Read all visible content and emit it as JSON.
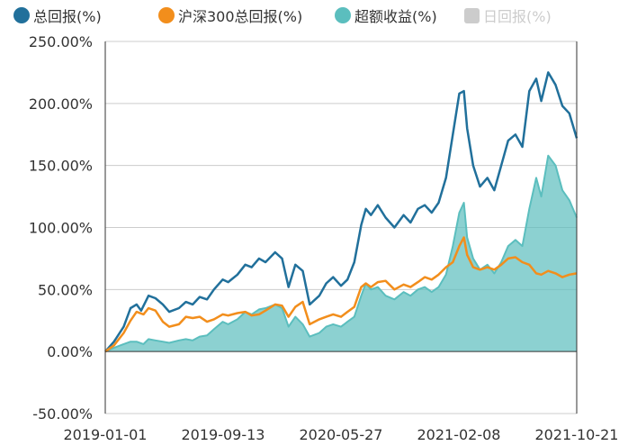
{
  "chart_data": {
    "type": "line",
    "legend": {
      "position": "top",
      "items": [
        {
          "label": "总回报(%)",
          "color": "#21709b",
          "active": true
        },
        {
          "label": "沪深300总回报(%)",
          "color": "#f28e1c",
          "active": true
        },
        {
          "label": "超额收益(%)",
          "color": "#5bbebe",
          "active": true
        },
        {
          "label": "日回报(%)",
          "color": "#cccccc",
          "active": false
        }
      ]
    },
    "y_axis": {
      "min": -50,
      "max": 250,
      "ticks": [
        {
          "value": 250,
          "label": "250.00%"
        },
        {
          "value": 200,
          "label": "200.00%"
        },
        {
          "value": 150,
          "label": "150.00%"
        },
        {
          "value": 100,
          "label": "100.00%"
        },
        {
          "value": 50,
          "label": "50.00%"
        },
        {
          "value": 0,
          "label": "0.00%"
        },
        {
          "value": -50,
          "label": "-50.00%"
        }
      ]
    },
    "x_axis": {
      "start": "2019-01-01",
      "end": "2021-10-21",
      "tick_labels": [
        "2019-01-01",
        "2019-09-13",
        "2020-05-27",
        "2021-02-08",
        "2021-10-21"
      ]
    },
    "grid": true,
    "series": [
      {
        "name": "总回报(%)",
        "color": "#21709b",
        "style": "line",
        "points": [
          [
            "2019-01-01",
            0
          ],
          [
            "2019-01-20",
            8
          ],
          [
            "2019-02-10",
            20
          ],
          [
            "2019-02-25",
            35
          ],
          [
            "2019-03-10",
            38
          ],
          [
            "2019-03-20",
            33
          ],
          [
            "2019-04-05",
            45
          ],
          [
            "2019-04-20",
            43
          ],
          [
            "2019-05-06",
            38
          ],
          [
            "2019-05-20",
            32
          ],
          [
            "2019-06-10",
            35
          ],
          [
            "2019-06-25",
            40
          ],
          [
            "2019-07-10",
            38
          ],
          [
            "2019-07-25",
            44
          ],
          [
            "2019-08-10",
            42
          ],
          [
            "2019-08-25",
            50
          ],
          [
            "2019-09-13",
            58
          ],
          [
            "2019-09-25",
            56
          ],
          [
            "2019-10-15",
            62
          ],
          [
            "2019-11-01",
            70
          ],
          [
            "2019-11-15",
            68
          ],
          [
            "2019-12-01",
            75
          ],
          [
            "2019-12-15",
            72
          ],
          [
            "2020-01-05",
            80
          ],
          [
            "2020-01-20",
            75
          ],
          [
            "2020-02-03",
            52
          ],
          [
            "2020-02-18",
            70
          ],
          [
            "2020-03-05",
            65
          ],
          [
            "2020-03-20",
            38
          ],
          [
            "2020-04-10",
            45
          ],
          [
            "2020-04-25",
            55
          ],
          [
            "2020-05-10",
            60
          ],
          [
            "2020-05-27",
            53
          ],
          [
            "2020-06-10",
            58
          ],
          [
            "2020-06-25",
            72
          ],
          [
            "2020-07-10",
            102
          ],
          [
            "2020-07-20",
            115
          ],
          [
            "2020-07-31",
            110
          ],
          [
            "2020-08-15",
            118
          ],
          [
            "2020-09-01",
            108
          ],
          [
            "2020-09-20",
            100
          ],
          [
            "2020-10-10",
            110
          ],
          [
            "2020-10-25",
            104
          ],
          [
            "2020-11-10",
            115
          ],
          [
            "2020-11-25",
            118
          ],
          [
            "2020-12-10",
            112
          ],
          [
            "2020-12-25",
            120
          ],
          [
            "2021-01-10",
            140
          ],
          [
            "2021-01-25",
            175
          ],
          [
            "2021-02-08",
            208
          ],
          [
            "2021-02-18",
            210
          ],
          [
            "2021-02-25",
            180
          ],
          [
            "2021-03-10",
            150
          ],
          [
            "2021-03-25",
            133
          ],
          [
            "2021-04-10",
            140
          ],
          [
            "2021-04-25",
            130
          ],
          [
            "2021-05-10",
            150
          ],
          [
            "2021-05-25",
            170
          ],
          [
            "2021-06-10",
            175
          ],
          [
            "2021-06-25",
            165
          ],
          [
            "2021-07-10",
            210
          ],
          [
            "2021-07-25",
            220
          ],
          [
            "2021-08-05",
            202
          ],
          [
            "2021-08-20",
            225
          ],
          [
            "2021-09-05",
            215
          ],
          [
            "2021-09-20",
            198
          ],
          [
            "2021-10-05",
            192
          ],
          [
            "2021-10-21",
            172
          ]
        ]
      },
      {
        "name": "沪深300总回报(%)",
        "color": "#f28e1c",
        "style": "line",
        "points": [
          [
            "2019-01-01",
            0
          ],
          [
            "2019-01-20",
            5
          ],
          [
            "2019-02-10",
            15
          ],
          [
            "2019-02-25",
            25
          ],
          [
            "2019-03-10",
            32
          ],
          [
            "2019-03-25",
            30
          ],
          [
            "2019-04-05",
            35
          ],
          [
            "2019-04-20",
            33
          ],
          [
            "2019-05-06",
            24
          ],
          [
            "2019-05-20",
            20
          ],
          [
            "2019-06-10",
            22
          ],
          [
            "2019-06-25",
            28
          ],
          [
            "2019-07-10",
            27
          ],
          [
            "2019-07-25",
            28
          ],
          [
            "2019-08-10",
            24
          ],
          [
            "2019-08-25",
            26
          ],
          [
            "2019-09-13",
            30
          ],
          [
            "2019-09-25",
            29
          ],
          [
            "2019-10-15",
            31
          ],
          [
            "2019-11-01",
            32
          ],
          [
            "2019-11-15",
            29
          ],
          [
            "2019-12-01",
            30
          ],
          [
            "2019-12-15",
            33
          ],
          [
            "2020-01-05",
            38
          ],
          [
            "2020-01-20",
            37
          ],
          [
            "2020-02-03",
            28
          ],
          [
            "2020-02-18",
            36
          ],
          [
            "2020-03-05",
            40
          ],
          [
            "2020-03-20",
            22
          ],
          [
            "2020-04-10",
            26
          ],
          [
            "2020-04-25",
            28
          ],
          [
            "2020-05-10",
            30
          ],
          [
            "2020-05-27",
            28
          ],
          [
            "2020-06-10",
            32
          ],
          [
            "2020-06-25",
            36
          ],
          [
            "2020-07-10",
            52
          ],
          [
            "2020-07-20",
            55
          ],
          [
            "2020-07-31",
            52
          ],
          [
            "2020-08-15",
            56
          ],
          [
            "2020-09-01",
            57
          ],
          [
            "2020-09-20",
            50
          ],
          [
            "2020-10-10",
            54
          ],
          [
            "2020-10-25",
            52
          ],
          [
            "2020-11-10",
            56
          ],
          [
            "2020-11-25",
            60
          ],
          [
            "2020-12-10",
            58
          ],
          [
            "2020-12-25",
            62
          ],
          [
            "2021-01-10",
            68
          ],
          [
            "2021-01-25",
            72
          ],
          [
            "2021-02-08",
            85
          ],
          [
            "2021-02-18",
            92
          ],
          [
            "2021-02-25",
            78
          ],
          [
            "2021-03-10",
            68
          ],
          [
            "2021-03-25",
            66
          ],
          [
            "2021-04-10",
            68
          ],
          [
            "2021-04-25",
            66
          ],
          [
            "2021-05-10",
            70
          ],
          [
            "2021-05-25",
            75
          ],
          [
            "2021-06-10",
            76
          ],
          [
            "2021-06-25",
            72
          ],
          [
            "2021-07-10",
            70
          ],
          [
            "2021-07-25",
            63
          ],
          [
            "2021-08-05",
            62
          ],
          [
            "2021-08-20",
            65
          ],
          [
            "2021-09-05",
            63
          ],
          [
            "2021-09-20",
            60
          ],
          [
            "2021-10-05",
            62
          ],
          [
            "2021-10-21",
            63
          ]
        ]
      },
      {
        "name": "超额收益(%)",
        "color": "#5bbebe",
        "style": "area",
        "points": [
          [
            "2019-01-01",
            0
          ],
          [
            "2019-01-20",
            3
          ],
          [
            "2019-02-10",
            6
          ],
          [
            "2019-02-25",
            8
          ],
          [
            "2019-03-10",
            8
          ],
          [
            "2019-03-25",
            6
          ],
          [
            "2019-04-05",
            10
          ],
          [
            "2019-04-20",
            9
          ],
          [
            "2019-05-06",
            8
          ],
          [
            "2019-05-20",
            7
          ],
          [
            "2019-06-10",
            9
          ],
          [
            "2019-06-25",
            10
          ],
          [
            "2019-07-10",
            9
          ],
          [
            "2019-07-25",
            12
          ],
          [
            "2019-08-10",
            13
          ],
          [
            "2019-08-25",
            18
          ],
          [
            "2019-09-13",
            24
          ],
          [
            "2019-09-25",
            22
          ],
          [
            "2019-10-15",
            26
          ],
          [
            "2019-11-01",
            32
          ],
          [
            "2019-11-15",
            30
          ],
          [
            "2019-12-01",
            34
          ],
          [
            "2019-12-15",
            35
          ],
          [
            "2020-01-05",
            38
          ],
          [
            "2020-01-20",
            35
          ],
          [
            "2020-02-03",
            20
          ],
          [
            "2020-02-18",
            28
          ],
          [
            "2020-03-05",
            22
          ],
          [
            "2020-03-20",
            12
          ],
          [
            "2020-04-10",
            15
          ],
          [
            "2020-04-25",
            20
          ],
          [
            "2020-05-10",
            22
          ],
          [
            "2020-05-27",
            20
          ],
          [
            "2020-06-10",
            24
          ],
          [
            "2020-06-25",
            28
          ],
          [
            "2020-07-10",
            45
          ],
          [
            "2020-07-20",
            55
          ],
          [
            "2020-07-31",
            50
          ],
          [
            "2020-08-15",
            52
          ],
          [
            "2020-09-01",
            45
          ],
          [
            "2020-09-20",
            42
          ],
          [
            "2020-10-10",
            48
          ],
          [
            "2020-10-25",
            45
          ],
          [
            "2020-11-10",
            50
          ],
          [
            "2020-11-25",
            52
          ],
          [
            "2020-12-10",
            48
          ],
          [
            "2020-12-25",
            52
          ],
          [
            "2021-01-10",
            62
          ],
          [
            "2021-01-25",
            85
          ],
          [
            "2021-02-08",
            112
          ],
          [
            "2021-02-18",
            120
          ],
          [
            "2021-02-25",
            92
          ],
          [
            "2021-03-10",
            75
          ],
          [
            "2021-03-25",
            66
          ],
          [
            "2021-04-10",
            70
          ],
          [
            "2021-04-25",
            63
          ],
          [
            "2021-05-10",
            72
          ],
          [
            "2021-05-25",
            85
          ],
          [
            "2021-06-10",
            90
          ],
          [
            "2021-06-25",
            85
          ],
          [
            "2021-07-10",
            115
          ],
          [
            "2021-07-25",
            140
          ],
          [
            "2021-08-05",
            125
          ],
          [
            "2021-08-20",
            158
          ],
          [
            "2021-09-05",
            150
          ],
          [
            "2021-09-20",
            130
          ],
          [
            "2021-10-05",
            122
          ],
          [
            "2021-10-21",
            108
          ]
        ]
      }
    ]
  }
}
